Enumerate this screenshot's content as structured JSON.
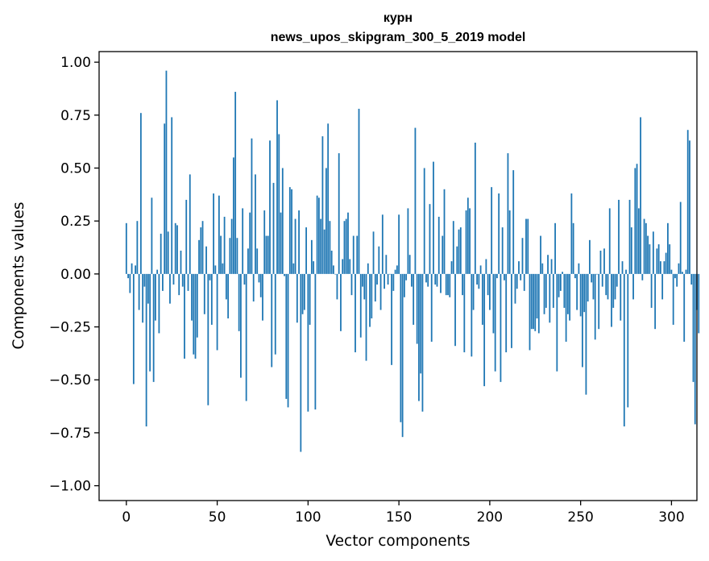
{
  "chart_data": {
    "type": "bar",
    "title_line1": "курн",
    "title_line2": "news_upos_skipgram_300_5_2019 model",
    "xlabel": "Vector components",
    "ylabel": "Components values",
    "xlim": [
      -15,
      314
    ],
    "ylim": [
      -1.07,
      1.05
    ],
    "xticks": [
      0,
      50,
      100,
      150,
      200,
      250,
      300
    ],
    "yticks": [
      1.0,
      0.75,
      0.5,
      0.25,
      0.0,
      -0.25,
      -0.5,
      -0.75,
      -1.0
    ],
    "xtick_labels": [
      "0",
      "50",
      "100",
      "150",
      "200",
      "250",
      "300"
    ],
    "ytick_labels": [
      "1.00",
      "0.75",
      "0.50",
      "0.25",
      "0.00",
      "−0.25",
      "−0.50",
      "−0.75",
      "−1.00"
    ],
    "bar_color": "#1f77b4",
    "values": [
      0.24,
      -0.02,
      -0.09,
      0.05,
      -0.52,
      0.04,
      0.25,
      -0.17,
      0.76,
      -0.23,
      -0.06,
      -0.72,
      -0.14,
      -0.46,
      0.36,
      -0.51,
      -0.22,
      0.02,
      -0.28,
      0.19,
      -0.08,
      0.71,
      0.96,
      0.2,
      -0.14,
      0.74,
      -0.05,
      0.24,
      0.23,
      -0.1,
      0.11,
      -0.06,
      -0.4,
      0.35,
      -0.08,
      0.47,
      -0.22,
      -0.38,
      -0.4,
      -0.3,
      0.16,
      0.22,
      0.25,
      -0.19,
      0.13,
      -0.62,
      -0.03,
      -0.24,
      0.38,
      0.04,
      -0.36,
      0.37,
      0.18,
      0.05,
      0.27,
      -0.12,
      -0.21,
      0.17,
      0.26,
      0.55,
      0.86,
      0.17,
      -0.27,
      -0.49,
      0.31,
      -0.05,
      -0.6,
      0.12,
      0.29,
      0.64,
      -0.13,
      0.47,
      0.12,
      -0.04,
      -0.11,
      -0.22,
      0.3,
      0.18,
      0.18,
      0.63,
      -0.44,
      0.43,
      -0.38,
      0.82,
      0.66,
      0.29,
      0.5,
      -0.01,
      -0.59,
      -0.63,
      0.41,
      0.4,
      0.05,
      0.26,
      -0.23,
      0.3,
      -0.84,
      -0.19,
      -0.17,
      0.22,
      -0.65,
      -0.24,
      0.16,
      0.06,
      -0.64,
      0.37,
      0.36,
      0.26,
      0.65,
      0.21,
      0.5,
      0.71,
      0.25,
      0.11,
      0.04,
      0.0,
      -0.12,
      0.57,
      -0.27,
      0.07,
      0.25,
      0.26,
      0.29,
      0.07,
      -0.1,
      0.18,
      -0.37,
      0.18,
      0.78,
      -0.3,
      -0.06,
      -0.12,
      -0.41,
      0.05,
      -0.25,
      -0.21,
      0.2,
      -0.13,
      -0.05,
      0.13,
      -0.17,
      0.28,
      -0.07,
      0.09,
      -0.05,
      0.0,
      -0.43,
      -0.08,
      0.02,
      0.04,
      0.28,
      -0.7,
      -0.77,
      -0.11,
      -0.03,
      0.31,
      0.09,
      -0.06,
      -0.24,
      0.69,
      -0.33,
      -0.6,
      -0.47,
      -0.65,
      0.5,
      -0.04,
      -0.06,
      0.33,
      -0.32,
      0.53,
      -0.05,
      -0.06,
      0.27,
      -0.09,
      0.18,
      0.4,
      -0.1,
      -0.1,
      -0.11,
      0.06,
      0.25,
      -0.34,
      0.13,
      0.21,
      0.22,
      -0.1,
      -0.37,
      0.3,
      0.36,
      0.31,
      -0.39,
      -0.17,
      0.62,
      -0.05,
      -0.07,
      0.04,
      -0.24,
      -0.53,
      0.07,
      -0.1,
      -0.17,
      0.41,
      -0.28,
      -0.46,
      -0.02,
      0.38,
      -0.51,
      0.22,
      -0.03,
      -0.37,
      0.57,
      0.3,
      -0.35,
      0.49,
      -0.14,
      -0.07,
      0.06,
      -0.03,
      0.17,
      -0.08,
      0.26,
      0.26,
      -0.36,
      -0.26,
      -0.26,
      -0.27,
      -0.21,
      -0.28,
      0.18,
      0.05,
      -0.19,
      -0.16,
      0.09,
      -0.23,
      0.07,
      -0.16,
      0.24,
      -0.46,
      -0.11,
      -0.08,
      0.01,
      -0.16,
      -0.32,
      -0.19,
      -0.22,
      0.38,
      0.24,
      -0.02,
      -0.17,
      0.05,
      -0.2,
      -0.44,
      -0.18,
      -0.57,
      -0.13,
      0.16,
      -0.04,
      -0.12,
      -0.31,
      0.0,
      -0.26,
      0.11,
      -0.06,
      0.12,
      -0.1,
      -0.12,
      0.31,
      -0.25,
      -0.16,
      -0.12,
      -0.06,
      0.35,
      -0.22,
      0.06,
      -0.72,
      0.02,
      -0.63,
      0.35,
      0.22,
      -0.12,
      0.5,
      0.52,
      0.31,
      0.74,
      -0.03,
      0.26,
      0.24,
      0.18,
      0.14,
      -0.16,
      0.2,
      -0.26,
      0.12,
      0.14,
      0.06,
      -0.12,
      0.06,
      0.1,
      0.24,
      0.14,
      0.02,
      -0.24,
      -0.02,
      -0.06,
      0.05,
      0.34,
      0.01,
      -0.32,
      0.02,
      0.68,
      0.63,
      -0.05,
      -0.51,
      -0.71,
      -0.17,
      -0.28
    ]
  }
}
